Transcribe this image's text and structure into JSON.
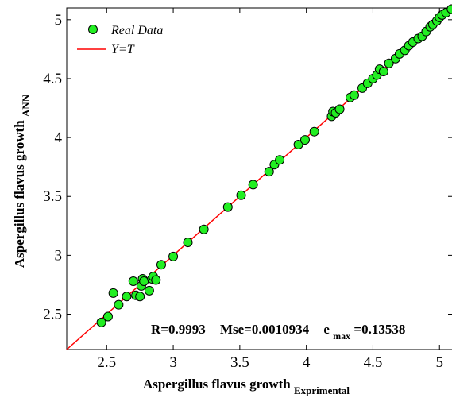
{
  "chart_data": {
    "type": "scatter",
    "xlabel": "Aspergillus flavus growth",
    "xlabel_sub": "Exprimental",
    "ylabel": "Aspergillus flavus growth",
    "ylabel_sub": "ANN",
    "xlim": [
      2.2,
      5.1
    ],
    "ylim": [
      2.2,
      5.1
    ],
    "xticks": [
      "2.5",
      "3",
      "3.5",
      "4",
      "4.5",
      "5"
    ],
    "yticks": [
      "2.5",
      "3",
      "3.5",
      "4",
      "4.5",
      "5"
    ],
    "legend": {
      "position": "top-left",
      "points_label": "Real Data",
      "line_label": "Y=T"
    },
    "annotation": {
      "r": "R=0.9993",
      "mse": "Mse=0.0010934",
      "emax_prefix": "e",
      "emax_sub": "max",
      "emax_value": "=0.13538"
    },
    "colors": {
      "points": "#22ee22",
      "line": "#ff0000"
    },
    "series": [
      {
        "name": "Real Data",
        "x": [
          2.46,
          2.51,
          2.55,
          2.59,
          2.65,
          2.7,
          2.72,
          2.75,
          2.76,
          2.77,
          2.78,
          2.82,
          2.84,
          2.85,
          2.87,
          2.91,
          3.0,
          3.11,
          3.23,
          3.41,
          3.51,
          3.6,
          3.72,
          3.76,
          3.8,
          3.94,
          3.99,
          4.06,
          4.19,
          4.2,
          4.22,
          4.25,
          4.33,
          4.36,
          4.42,
          4.46,
          4.5,
          4.53,
          4.55,
          4.58,
          4.62,
          4.67,
          4.7,
          4.74,
          4.77,
          4.8,
          4.84,
          4.87,
          4.9,
          4.93,
          4.95,
          4.98,
          5.0,
          5.02,
          5.05,
          5.09
        ],
        "y": [
          2.43,
          2.48,
          2.68,
          2.58,
          2.65,
          2.78,
          2.66,
          2.65,
          2.74,
          2.8,
          2.78,
          2.7,
          2.8,
          2.82,
          2.79,
          2.92,
          2.99,
          3.11,
          3.22,
          3.41,
          3.51,
          3.6,
          3.71,
          3.77,
          3.81,
          3.94,
          3.98,
          4.05,
          4.18,
          4.22,
          4.21,
          4.24,
          4.34,
          4.36,
          4.42,
          4.46,
          4.5,
          4.53,
          4.58,
          4.56,
          4.63,
          4.67,
          4.71,
          4.74,
          4.78,
          4.81,
          4.84,
          4.86,
          4.9,
          4.94,
          4.96,
          4.99,
          5.02,
          5.04,
          5.06,
          5.09
        ]
      }
    ]
  }
}
